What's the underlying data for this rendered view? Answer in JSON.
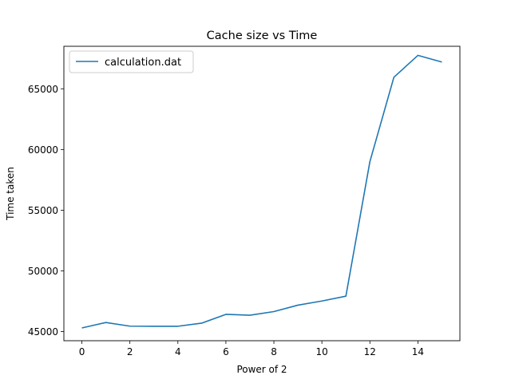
{
  "chart_data": {
    "type": "line",
    "title": "Cache size vs Time",
    "xlabel": "Power of 2",
    "ylabel": "Time taken",
    "xlim": [
      -0.75,
      15.75
    ],
    "ylim": [
      44250,
      68500
    ],
    "xticks": [
      0,
      2,
      4,
      6,
      8,
      10,
      12,
      14
    ],
    "yticks": [
      45000,
      50000,
      55000,
      60000,
      65000
    ],
    "grid": false,
    "legend_position": "upper-left",
    "series": [
      {
        "name": "calculation.dat",
        "color": "#1f77b4",
        "x": [
          0,
          1,
          2,
          3,
          4,
          5,
          6,
          7,
          8,
          9,
          10,
          11,
          12,
          13,
          14,
          15
        ],
        "y": [
          45300,
          45750,
          45450,
          45440,
          45440,
          45700,
          46420,
          46350,
          46650,
          47180,
          47520,
          47920,
          59000,
          65950,
          67750,
          67200
        ]
      }
    ]
  }
}
